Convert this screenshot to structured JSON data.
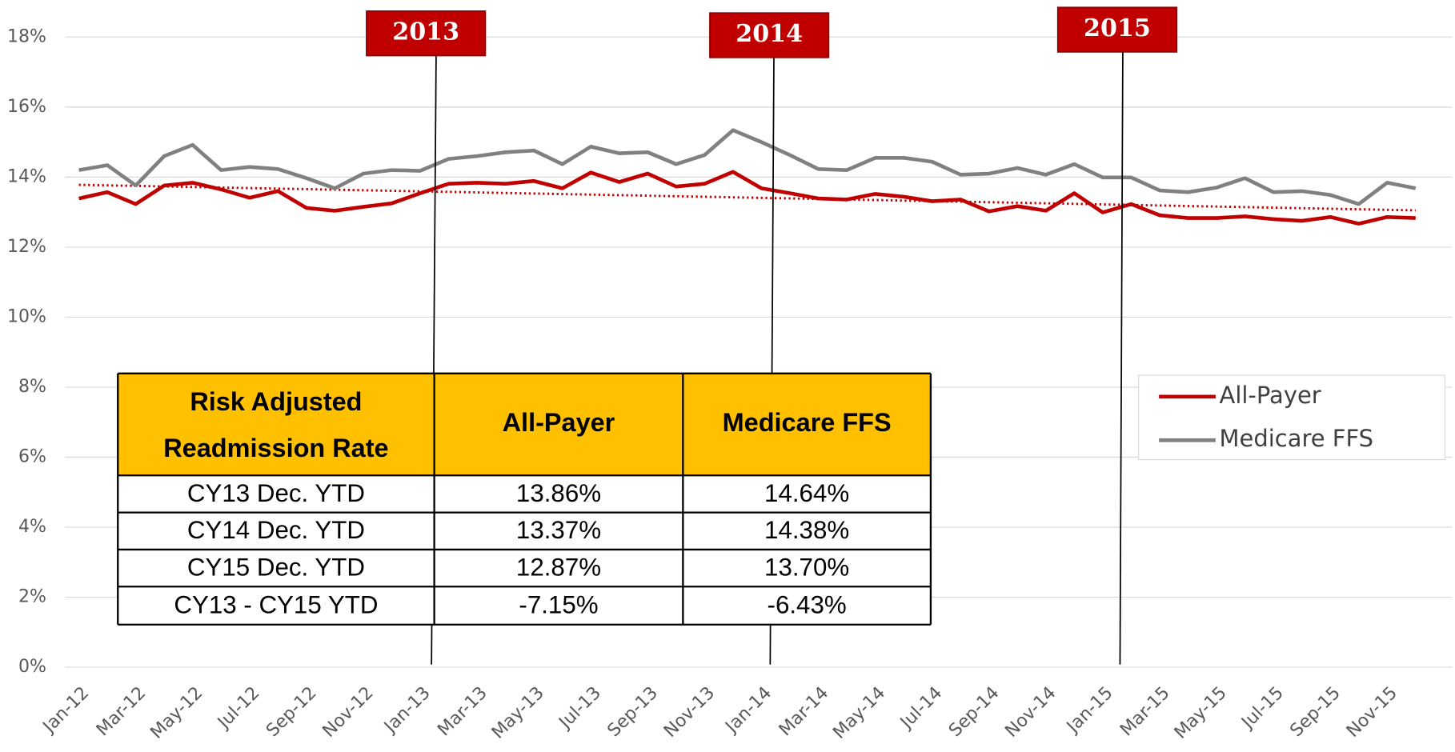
{
  "chart_data": {
    "type": "line",
    "categories": [
      "Jan-12",
      null,
      "Mar-12",
      null,
      "May-12",
      null,
      "Jul-12",
      null,
      "Sep-12",
      null,
      "Nov-12",
      null,
      "Jan-13",
      null,
      "Mar-13",
      null,
      "May-13",
      null,
      "Jul-13",
      null,
      "Sep-13",
      null,
      "Nov-13",
      null,
      "Jan-14",
      null,
      "Mar-14",
      null,
      "May-14",
      null,
      "Jul-14",
      null,
      "Sep-14",
      null,
      "Nov-14",
      null,
      "Jan-15",
      null,
      "Mar-15",
      null,
      "May-15",
      null,
      "Jul-15",
      null,
      "Sep-15",
      null,
      "Nov-15",
      null
    ],
    "series": [
      {
        "name": "All-Payer",
        "color": "#c00000",
        "values": [
          13.39,
          13.57,
          13.23,
          13.76,
          13.84,
          13.65,
          13.41,
          13.6,
          13.12,
          13.04,
          13.15,
          13.25,
          13.54,
          13.81,
          13.84,
          13.81,
          13.89,
          13.68,
          14.13,
          13.86,
          14.1,
          13.73,
          13.81,
          14.15,
          13.68,
          13.54,
          13.39,
          13.36,
          13.52,
          13.44,
          13.31,
          13.36,
          13.02,
          13.17,
          13.04,
          13.54,
          12.99,
          13.23,
          12.91,
          12.83,
          12.83,
          12.88,
          12.8,
          12.75,
          12.86,
          12.67,
          12.86,
          12.83
        ]
      },
      {
        "name": "Medicare FFS",
        "color": "#808080",
        "values": [
          14.2,
          14.34,
          13.76,
          14.6,
          14.92,
          14.2,
          14.29,
          14.23,
          13.97,
          13.68,
          14.1,
          14.2,
          14.18,
          14.52,
          14.6,
          14.71,
          14.76,
          14.37,
          14.87,
          14.68,
          14.71,
          14.37,
          14.63,
          15.34,
          15.0,
          14.63,
          14.23,
          14.2,
          14.55,
          14.55,
          14.44,
          14.07,
          14.1,
          14.26,
          14.07,
          14.37,
          13.99,
          13.99,
          13.62,
          13.57,
          13.7,
          13.97,
          13.57,
          13.6,
          13.49,
          13.23,
          13.84,
          13.68
        ]
      }
    ],
    "trend": {
      "color": "#c00000",
      "values": [
        13.78,
        13.05
      ]
    },
    "ylim": [
      0,
      18
    ],
    "yticks": [
      {
        "value": 0,
        "label": "0%"
      },
      {
        "value": 2,
        "label": "2%"
      },
      {
        "value": 4,
        "label": "4%"
      },
      {
        "value": 6,
        "label": "6%"
      },
      {
        "value": 8,
        "label": "8%"
      },
      {
        "value": 10,
        "label": "10%"
      },
      {
        "value": 12,
        "label": "12%"
      },
      {
        "value": 14,
        "label": "14%"
      },
      {
        "value": 16,
        "label": "16%"
      },
      {
        "value": 18,
        "label": "18%"
      }
    ],
    "grid": true,
    "legend": "right",
    "annotations": [
      {
        "text": "2013"
      },
      {
        "text": "2014"
      },
      {
        "text": "2015"
      }
    ]
  },
  "table": {
    "header": [
      "Risk Adjusted Readmission Rate",
      "All-Payer",
      "Medicare FFS"
    ],
    "rows": [
      [
        "CY13 Dec. YTD",
        "13.86%",
        "14.64%"
      ],
      [
        "CY14 Dec. YTD",
        "13.37%",
        "14.38%"
      ],
      [
        "CY15 Dec. YTD",
        "12.87%",
        "13.70%"
      ],
      [
        "CY13 - CY15 YTD",
        "-7.15%",
        "-6.43%"
      ]
    ]
  }
}
